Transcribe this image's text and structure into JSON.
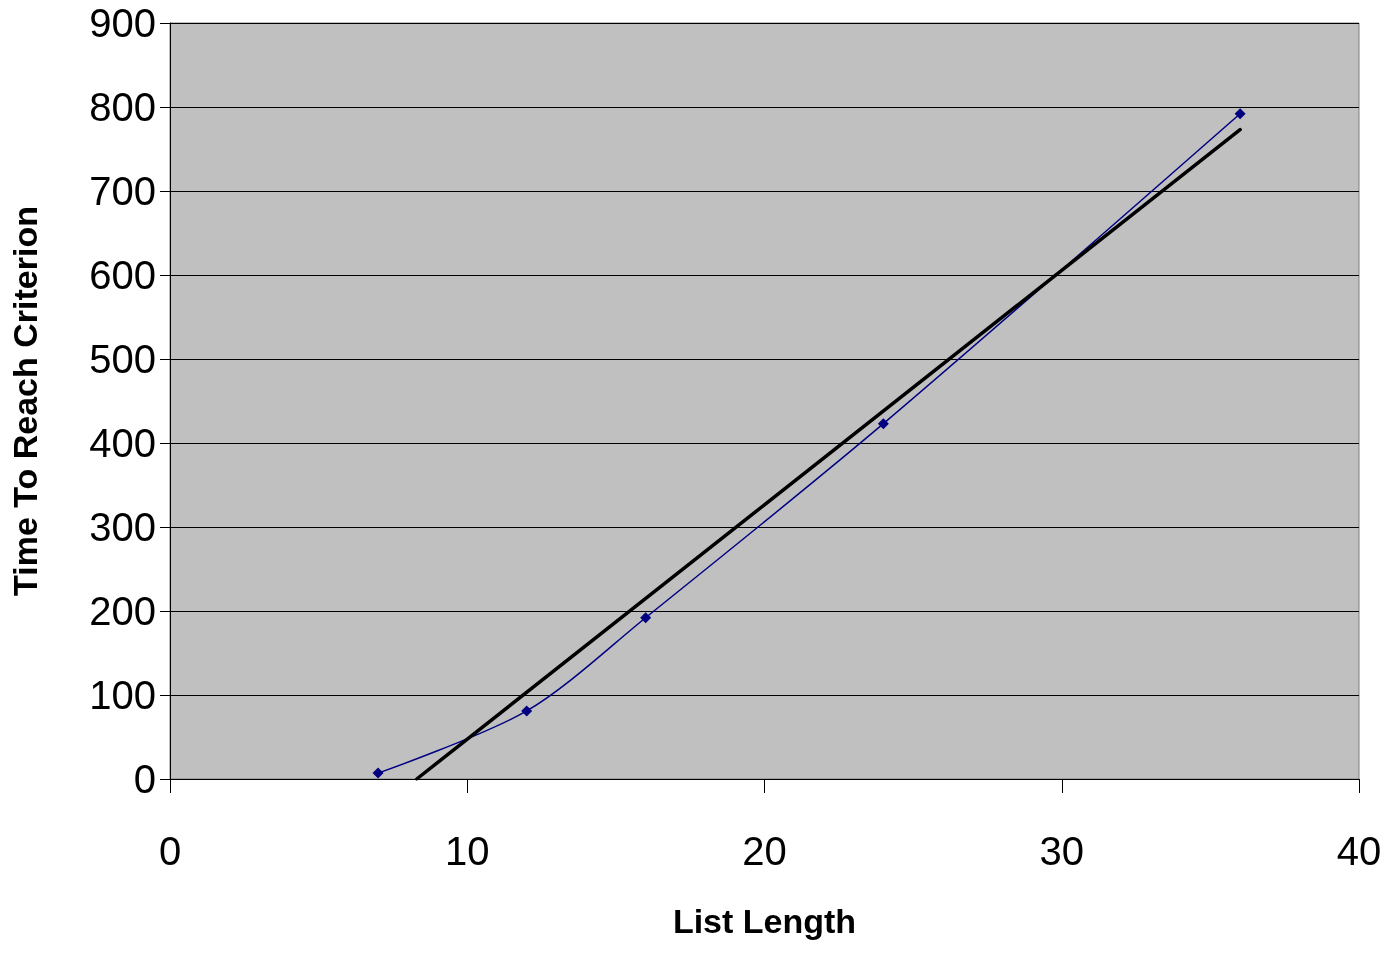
{
  "chart_data": {
    "type": "line",
    "xlabel": "List Length",
    "ylabel": "Time To Reach Criterion",
    "xlim": [
      0,
      40
    ],
    "xticks": [
      0,
      10,
      20,
      30,
      40
    ],
    "ylim": [
      0,
      900
    ],
    "yticks": [
      0,
      100,
      200,
      300,
      400,
      500,
      600,
      700,
      800,
      900
    ],
    "grid": "y",
    "marker": "diamond",
    "line_style": "solid",
    "series": [
      {
        "color": "#000080",
        "x": [
          7,
          12,
          16,
          24,
          36
        ],
        "values": [
          7,
          81,
          192,
          423,
          792
        ]
      },
      {
        "type": "line",
        "marker": "none",
        "color": "#000000",
        "x": [
          8.3,
          36
        ],
        "values": [
          0,
          773
        ]
      }
    ]
  }
}
